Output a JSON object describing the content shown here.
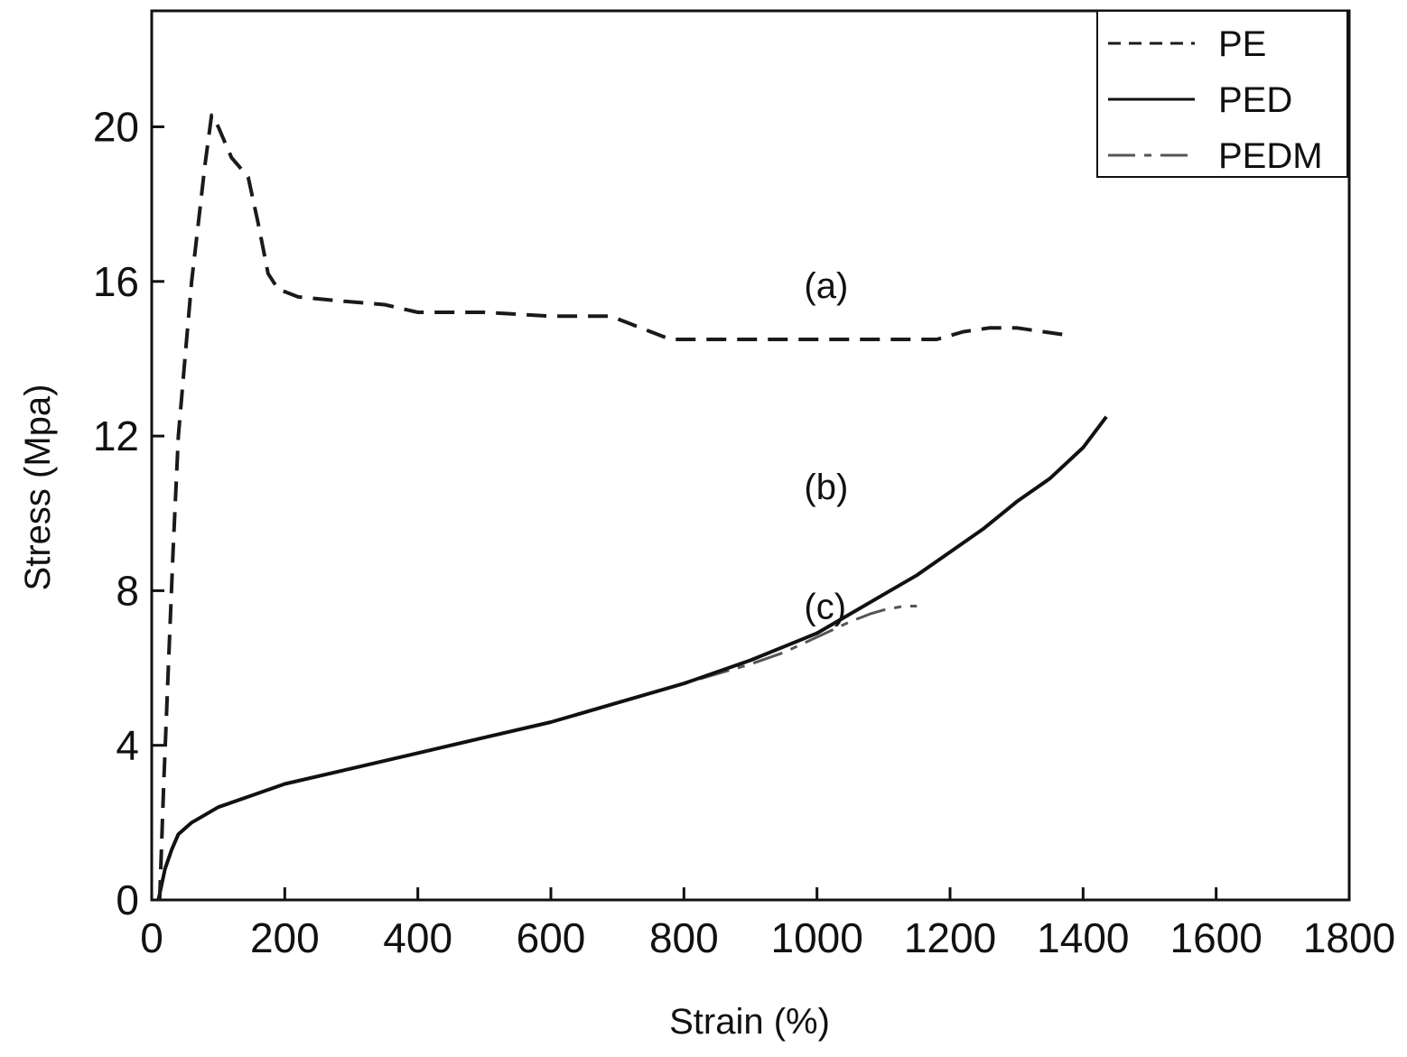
{
  "chart_data": {
    "type": "line",
    "title": "",
    "xlabel": "Strain (%)",
    "ylabel": "Stress (Mpa)",
    "xlim": [
      0,
      1800
    ],
    "ylim": [
      0,
      23
    ],
    "xticks": [
      0,
      200,
      400,
      600,
      800,
      1000,
      1200,
      1400,
      1600,
      1800
    ],
    "yticks": [
      0,
      4,
      8,
      12,
      16,
      20
    ],
    "xtick_labels": [
      "0",
      "200",
      "400",
      "600",
      "800",
      "1000",
      "1200",
      "1400",
      "1600",
      "1800"
    ],
    "ytick_labels": [
      "0",
      "4",
      "8",
      "12",
      "16",
      "20"
    ],
    "grid": false,
    "legend_position": "top-right",
    "series": [
      {
        "name": "PE",
        "style": "dashed",
        "color": "#1a1a1a",
        "x": [
          12,
          18,
          25,
          32,
          40,
          50,
          60,
          70,
          80,
          90,
          100,
          110,
          120,
          130,
          145,
          160,
          175,
          190,
          220,
          280,
          350,
          400,
          500,
          600,
          690,
          720,
          750,
          780,
          900,
          1000,
          1100,
          1180,
          1220,
          1260,
          1300,
          1340,
          1380
        ],
        "y": [
          0,
          3,
          6,
          9,
          12,
          14,
          16,
          17.5,
          19,
          20.3,
          20.0,
          19.6,
          19.2,
          19.0,
          18.7,
          17.5,
          16.2,
          15.8,
          15.6,
          15.5,
          15.4,
          15.2,
          15.2,
          15.1,
          15.1,
          14.9,
          14.7,
          14.5,
          14.5,
          14.5,
          14.5,
          14.5,
          14.7,
          14.8,
          14.8,
          14.7,
          14.6
        ]
      },
      {
        "name": "PED",
        "style": "solid",
        "color": "#111111",
        "x": [
          10,
          20,
          30,
          40,
          60,
          80,
          100,
          150,
          200,
          300,
          400,
          500,
          600,
          700,
          800,
          900,
          1000,
          1050,
          1100,
          1150,
          1200,
          1250,
          1300,
          1350,
          1400,
          1435
        ],
        "y": [
          0,
          0.8,
          1.3,
          1.7,
          2.0,
          2.2,
          2.4,
          2.7,
          3.0,
          3.4,
          3.8,
          4.2,
          4.6,
          5.1,
          5.6,
          6.2,
          6.9,
          7.4,
          7.9,
          8.4,
          9.0,
          9.6,
          10.3,
          10.9,
          11.7,
          12.5
        ]
      },
      {
        "name": "PEDM",
        "style": "dash-dot",
        "color": "#555555",
        "x": [
          10,
          20,
          30,
          40,
          60,
          80,
          100,
          150,
          200,
          300,
          400,
          500,
          600,
          700,
          800,
          900,
          950,
          1000,
          1050,
          1080,
          1100,
          1130,
          1150
        ],
        "y": [
          0,
          0.8,
          1.3,
          1.7,
          2.0,
          2.2,
          2.4,
          2.7,
          3.0,
          3.4,
          3.8,
          4.2,
          4.6,
          5.1,
          5.6,
          6.1,
          6.4,
          6.8,
          7.2,
          7.4,
          7.5,
          7.6,
          7.6
        ]
      }
    ],
    "annotations": [
      {
        "text": "(a)",
        "x": 1225,
        "y": 15.9
      },
      {
        "text": "(b)",
        "x": 1225,
        "y": 10.7
      },
      {
        "text": "(c)",
        "x": 1225,
        "y": 7.6
      }
    ]
  }
}
